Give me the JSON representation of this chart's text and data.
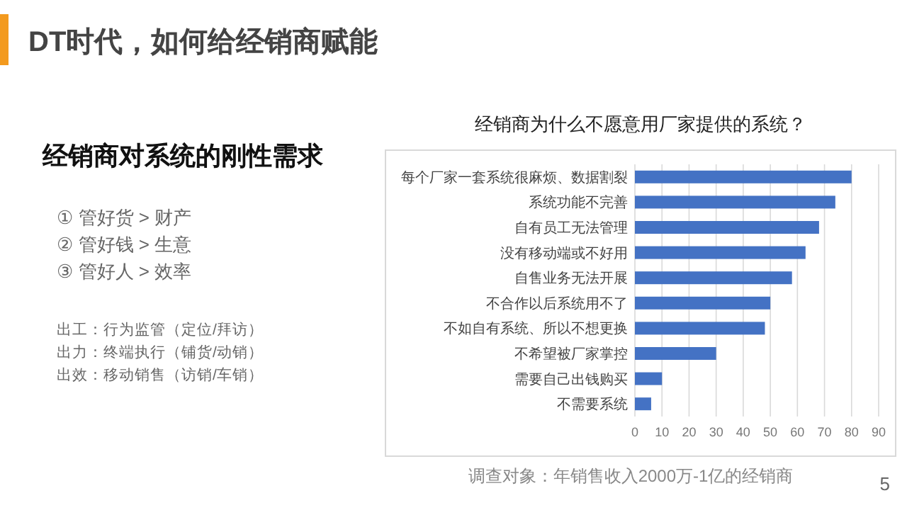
{
  "chart_data": {
    "type": "bar",
    "orientation": "horizontal",
    "title": "经销商为什么不愿意用厂家提供的系统？",
    "categories": [
      "每个厂家一套系统很麻烦、数据割裂",
      "系统功能不完善",
      "自有员工无法管理",
      "没有移动端或不好用",
      "自售业务无法开展",
      "不合作以后系统用不了",
      "不如自有系统、所以不想更换",
      "不希望被厂家掌控",
      "需要自己出钱购买",
      "不需要系统"
    ],
    "values": [
      80,
      74,
      68,
      63,
      58,
      50,
      48,
      30,
      10,
      6
    ],
    "color": "#4472c4",
    "xlim": [
      0,
      90
    ],
    "xticks": [
      0,
      10,
      20,
      30,
      40,
      50,
      60,
      70,
      80,
      90
    ],
    "grid": "x",
    "annotations": [
      "DT时代，如何给经销商赋能",
      "经销商对系统的刚性需求",
      "① 管好货 > 财产",
      "② 管好钱 > 生意",
      "③ 管好人 > 效率",
      "出工：行为监管（定位/拜访）",
      "出力：终端执行（铺货/动销）",
      "出效：移动销售（访销/车销）",
      "调查对象：年销售收入2000万-1亿的经销商",
      "5"
    ]
  }
}
